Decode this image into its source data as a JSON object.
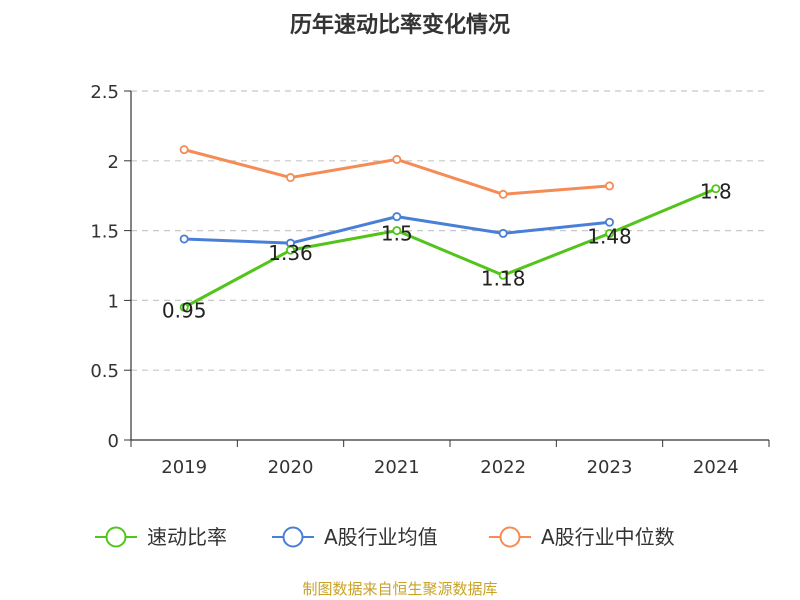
{
  "chart_data": {
    "type": "line",
    "title": "历年速动比率变化情况",
    "categories": [
      "2019",
      "2020",
      "2021",
      "2022",
      "2023",
      "2024"
    ],
    "ylim": [
      0,
      2.5
    ],
    "yticks": [
      "0",
      "0.5",
      "1",
      "1.5",
      "2",
      "2.5"
    ],
    "grid": true,
    "legend_position": "bottom",
    "series": [
      {
        "name": "速动比率",
        "color": "#52c41a",
        "values": [
          0.95,
          1.36,
          1.5,
          1.18,
          1.48,
          1.8
        ],
        "labels": [
          "0.95",
          "1.36",
          "1.5",
          "1.18",
          "1.48",
          "1.8"
        ]
      },
      {
        "name": "A股行业均值",
        "color": "#4a7fd8",
        "values": [
          1.44,
          1.41,
          1.6,
          1.48,
          1.56,
          null
        ]
      },
      {
        "name": "A股行业中位数",
        "color": "#f58c56",
        "values": [
          2.08,
          1.88,
          2.01,
          1.76,
          1.82,
          null
        ]
      }
    ]
  },
  "source_note": "制图数据来自恒生聚源数据库"
}
